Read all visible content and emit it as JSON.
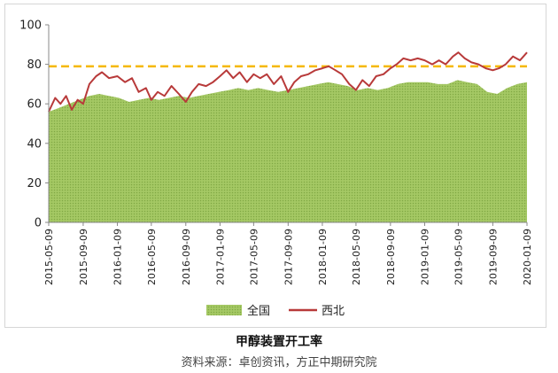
{
  "caption": "甲醇装置开工率",
  "source": "资料来源：卓创资讯，方正中期研究院",
  "colors": {
    "area_fill": "#a5c964",
    "area_pattern": "#7fa843",
    "line": "#b83a3a",
    "reference": "#f5b800"
  },
  "chart_data": {
    "type": "area",
    "title": "",
    "xlabel": "",
    "ylabel": "",
    "ylim": [
      0,
      100
    ],
    "yticks": [
      0,
      20,
      40,
      60,
      80,
      100
    ],
    "x_range": [
      "2015-05-09",
      "2020-01-09"
    ],
    "xticks": [
      "2015-05-09",
      "2015-09-09",
      "2016-01-09",
      "2016-05-09",
      "2016-09-09",
      "2017-01-09",
      "2017-05-09",
      "2017-09-09",
      "2018-01-09",
      "2018-05-09",
      "2018-09-09",
      "2019-01-09",
      "2019-05-09",
      "2019-09-09",
      "2020-01-09"
    ],
    "legend_position": "bottom",
    "reference_line": {
      "y": 79,
      "style": "dashed"
    },
    "series": [
      {
        "name": "全国",
        "type": "area",
        "points": [
          [
            "2015-05-09",
            56
          ],
          [
            "2015-06-15",
            58
          ],
          [
            "2015-07-20",
            60
          ],
          [
            "2015-08-25",
            62
          ],
          [
            "2015-10-01",
            64
          ],
          [
            "2015-11-05",
            65
          ],
          [
            "2015-12-10",
            64
          ],
          [
            "2016-01-15",
            63
          ],
          [
            "2016-02-20",
            61
          ],
          [
            "2016-03-25",
            62
          ],
          [
            "2016-04-30",
            63
          ],
          [
            "2016-06-05",
            62
          ],
          [
            "2016-07-10",
            63
          ],
          [
            "2016-08-15",
            64
          ],
          [
            "2016-09-20",
            63
          ],
          [
            "2016-10-25",
            64
          ],
          [
            "2016-11-30",
            65
          ],
          [
            "2017-01-05",
            66
          ],
          [
            "2017-02-10",
            67
          ],
          [
            "2017-03-15",
            68
          ],
          [
            "2017-04-20",
            67
          ],
          [
            "2017-05-25",
            68
          ],
          [
            "2017-06-30",
            67
          ],
          [
            "2017-08-05",
            66
          ],
          [
            "2017-09-10",
            67
          ],
          [
            "2017-10-15",
            68
          ],
          [
            "2017-11-20",
            69
          ],
          [
            "2017-12-25",
            70
          ],
          [
            "2018-01-30",
            71
          ],
          [
            "2018-03-05",
            70
          ],
          [
            "2018-04-10",
            69
          ],
          [
            "2018-05-15",
            67
          ],
          [
            "2018-06-20",
            68
          ],
          [
            "2018-07-25",
            67
          ],
          [
            "2018-08-30",
            68
          ],
          [
            "2018-10-05",
            70
          ],
          [
            "2018-11-10",
            71
          ],
          [
            "2018-12-15",
            71
          ],
          [
            "2019-01-20",
            71
          ],
          [
            "2019-02-25",
            70
          ],
          [
            "2019-04-01",
            70
          ],
          [
            "2019-05-06",
            72
          ],
          [
            "2019-06-10",
            71
          ],
          [
            "2019-07-15",
            70
          ],
          [
            "2019-08-20",
            66
          ],
          [
            "2019-09-25",
            65
          ],
          [
            "2019-10-30",
            68
          ],
          [
            "2019-12-05",
            70
          ],
          [
            "2020-01-09",
            71
          ]
        ]
      },
      {
        "name": "西北",
        "type": "line",
        "points": [
          [
            "2015-05-09",
            56
          ],
          [
            "2015-06-01",
            63
          ],
          [
            "2015-06-20",
            60
          ],
          [
            "2015-07-10",
            64
          ],
          [
            "2015-07-30",
            57
          ],
          [
            "2015-08-20",
            62
          ],
          [
            "2015-09-09",
            60
          ],
          [
            "2015-10-01",
            70
          ],
          [
            "2015-10-25",
            74
          ],
          [
            "2015-11-15",
            76
          ],
          [
            "2015-12-10",
            73
          ],
          [
            "2016-01-09",
            74
          ],
          [
            "2016-02-05",
            71
          ],
          [
            "2016-03-01",
            73
          ],
          [
            "2016-03-25",
            66
          ],
          [
            "2016-04-20",
            68
          ],
          [
            "2016-05-09",
            62
          ],
          [
            "2016-06-01",
            66
          ],
          [
            "2016-06-25",
            64
          ],
          [
            "2016-07-20",
            69
          ],
          [
            "2016-08-15",
            65
          ],
          [
            "2016-09-09",
            61
          ],
          [
            "2016-10-01",
            66
          ],
          [
            "2016-10-25",
            70
          ],
          [
            "2016-11-20",
            69
          ],
          [
            "2016-12-15",
            71
          ],
          [
            "2017-01-09",
            74
          ],
          [
            "2017-02-01",
            77
          ],
          [
            "2017-02-25",
            73
          ],
          [
            "2017-03-20",
            76
          ],
          [
            "2017-04-15",
            71
          ],
          [
            "2017-05-09",
            75
          ],
          [
            "2017-06-01",
            73
          ],
          [
            "2017-06-25",
            75
          ],
          [
            "2017-07-20",
            70
          ],
          [
            "2017-08-15",
            74
          ],
          [
            "2017-09-09",
            66
          ],
          [
            "2017-10-01",
            71
          ],
          [
            "2017-10-25",
            74
          ],
          [
            "2017-11-20",
            75
          ],
          [
            "2017-12-15",
            77
          ],
          [
            "2018-01-09",
            78
          ],
          [
            "2018-02-01",
            79
          ],
          [
            "2018-02-25",
            77
          ],
          [
            "2018-03-20",
            75
          ],
          [
            "2018-04-15",
            70
          ],
          [
            "2018-05-09",
            67
          ],
          [
            "2018-06-01",
            72
          ],
          [
            "2018-06-25",
            69
          ],
          [
            "2018-07-20",
            74
          ],
          [
            "2018-08-15",
            75
          ],
          [
            "2018-09-09",
            78
          ],
          [
            "2018-10-01",
            80
          ],
          [
            "2018-10-25",
            83
          ],
          [
            "2018-11-20",
            82
          ],
          [
            "2018-12-15",
            83
          ],
          [
            "2019-01-09",
            82
          ],
          [
            "2019-02-05",
            80
          ],
          [
            "2019-03-01",
            82
          ],
          [
            "2019-03-25",
            80
          ],
          [
            "2019-04-20",
            84
          ],
          [
            "2019-05-09",
            86
          ],
          [
            "2019-06-01",
            83
          ],
          [
            "2019-06-25",
            81
          ],
          [
            "2019-07-20",
            80
          ],
          [
            "2019-08-15",
            78
          ],
          [
            "2019-09-09",
            77
          ],
          [
            "2019-10-01",
            78
          ],
          [
            "2019-10-25",
            80
          ],
          [
            "2019-11-20",
            84
          ],
          [
            "2019-12-15",
            82
          ],
          [
            "2020-01-09",
            86
          ]
        ]
      }
    ]
  }
}
